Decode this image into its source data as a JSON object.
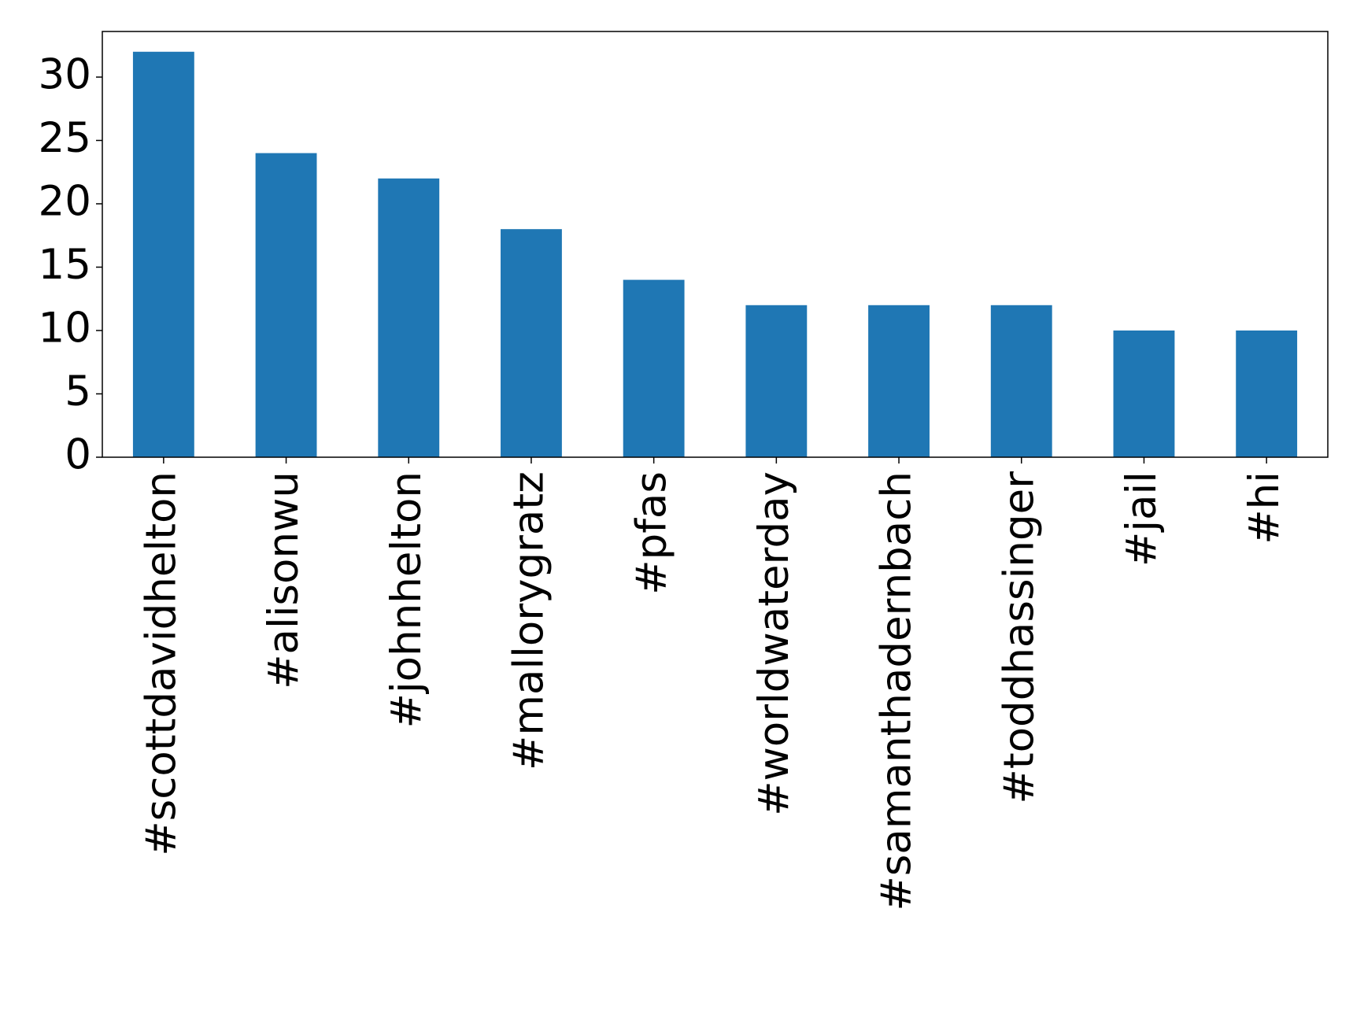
{
  "chart_data": {
    "type": "bar",
    "categories": [
      "#scottdavidhelton",
      "#alisonwu",
      "#johnhelton",
      "#mallorygratz",
      "#pfas",
      "#worldwaterday",
      "#samanthadernbach",
      "#toddhassinger",
      "#jail",
      "#hi"
    ],
    "values": [
      32,
      24,
      22,
      18,
      14,
      12,
      12,
      12,
      10,
      10
    ],
    "color": "#1f77b4",
    "ylim": [
      0,
      33.6
    ],
    "yticks": [
      0,
      5,
      10,
      15,
      20,
      25,
      30
    ],
    "grid": false
  }
}
